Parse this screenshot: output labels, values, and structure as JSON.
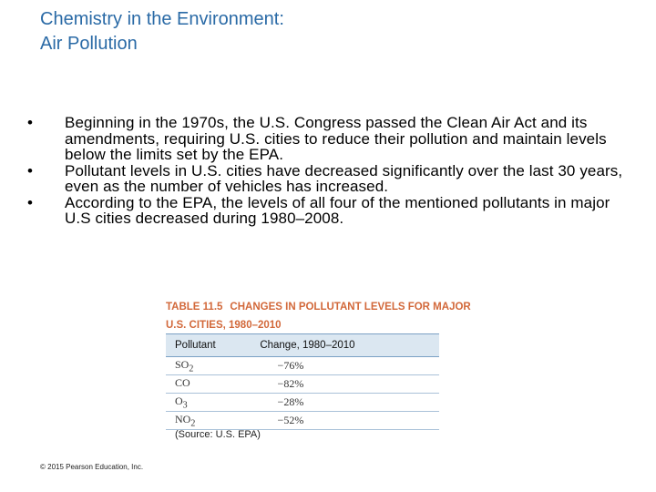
{
  "title": {
    "line1": "Chemistry in the Environment:",
    "line2": "Air Pollution"
  },
  "bullets": [
    "Beginning in the 1970s, the U.S. Congress passed the Clean Air Act and its amendments, requiring U.S. cities to reduce their pollution and maintain levels below the limits set by the EPA.",
    "Pollutant levels in U.S. cities have decreased significantly over the last 30 years, even as the number of vehicles has increased.",
    "According to the EPA, the levels of all four of the mentioned pollutants in major U.S cities decreased during 1980–2008."
  ],
  "table": {
    "number": "TABLE 11.5",
    "caption": "CHANGES IN POLLUTANT LEVELS FOR MAJOR U.S. CITIES, 1980–2010",
    "headers": [
      "Pollutant",
      "Change, 1980–2010"
    ],
    "rows": [
      {
        "pollutant": "SO",
        "subscript": "2",
        "change": "−76%"
      },
      {
        "pollutant": "CO",
        "subscript": "",
        "change": "−82%"
      },
      {
        "pollutant": "O",
        "subscript": "3",
        "change": "−28%"
      },
      {
        "pollutant": "NO",
        "subscript": "2",
        "change": "−52%"
      }
    ],
    "source": "(Source: U.S. EPA)"
  },
  "copyright": "© 2015 Pearson Education, Inc."
}
